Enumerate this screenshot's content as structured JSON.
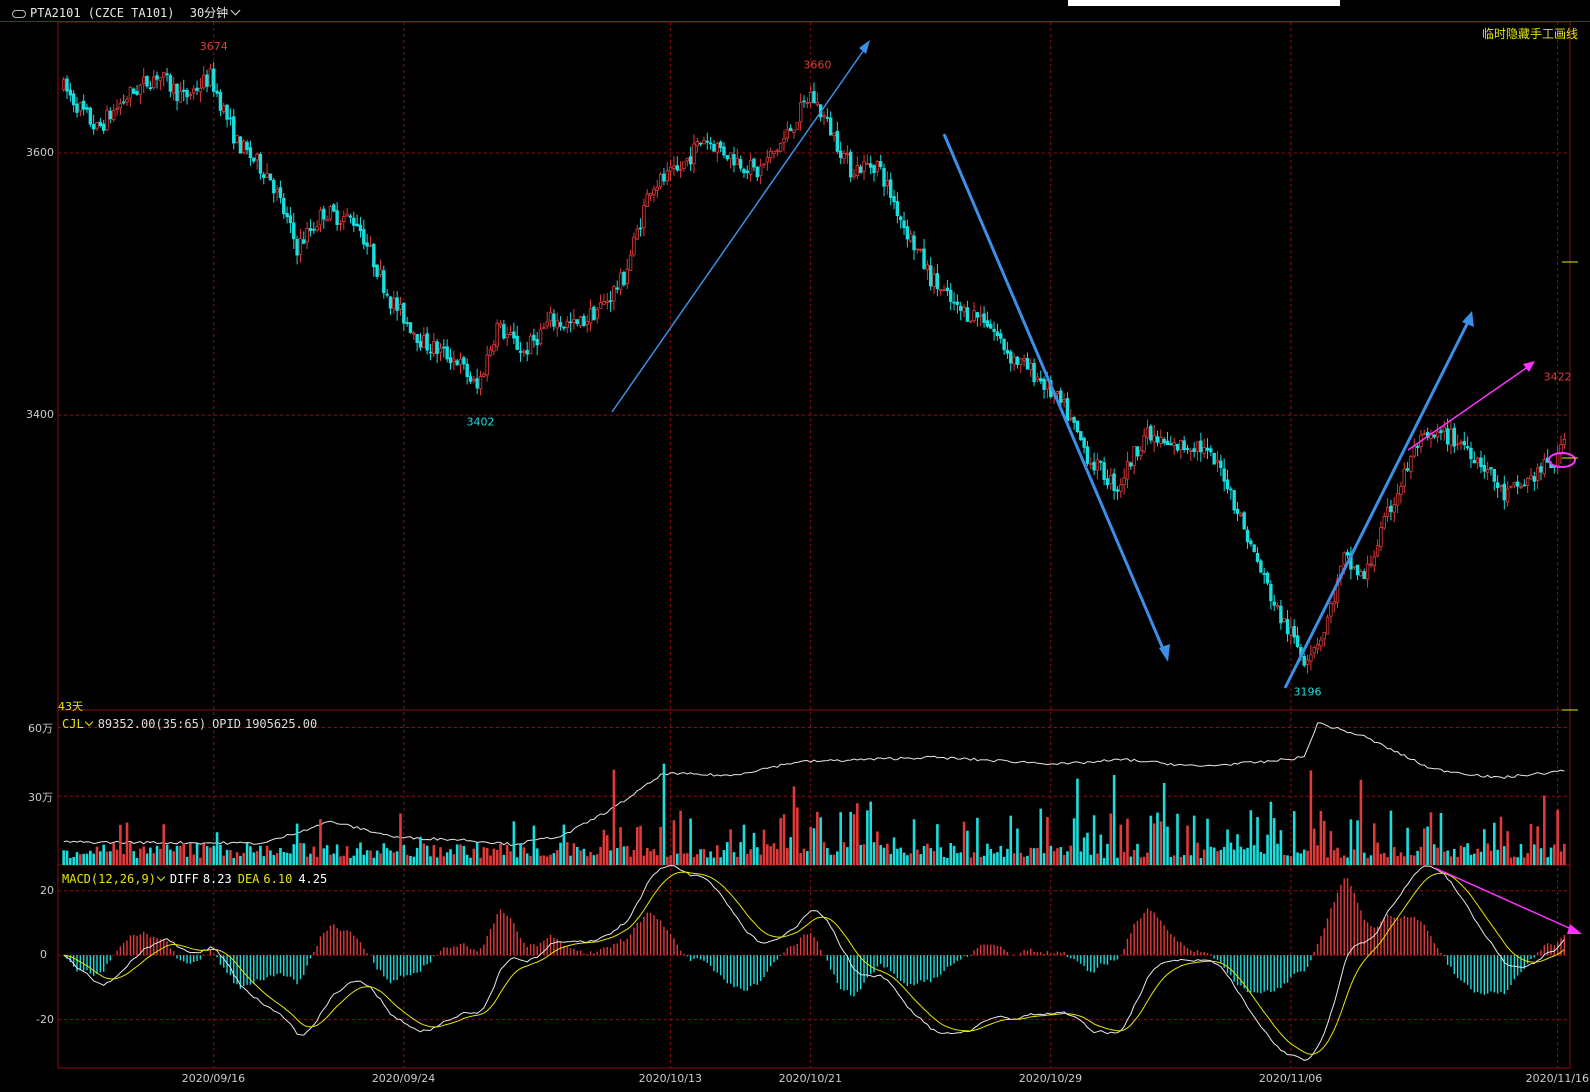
{
  "header": {
    "title": "PTA2101 (CZCE TA101)",
    "period": "30分钟"
  },
  "hide_lines_label": "临时隐藏手工画线",
  "days_label": "43天",
  "colors": {
    "up": "#e03a3a",
    "down": "#19dede",
    "grid": "#8a1010",
    "axis_text": "#cccccc",
    "arrow_blue": "#3b8fe6",
    "arrow_magenta": "#ff33ff",
    "diff_line": "#e8e8e8",
    "dea_line": "#e6e600",
    "ind_label": "#e6e600"
  },
  "volume_panel": {
    "name": "CJL",
    "value_text": "89352.00(35:65)",
    "opid_label": "OPID",
    "opid_value": "1905625.00"
  },
  "macd_panel": {
    "name": "MACD(12,26,9)",
    "diff_label": "DIFF",
    "diff_value": "8.23",
    "dea_label": "DEA",
    "dea_value": "6.10",
    "macd_value": "4.25"
  },
  "chart_data": [
    {
      "type": "candlestick",
      "ylim": [
        3175,
        3700
      ],
      "y_ticks": [
        "3600",
        "3400"
      ],
      "x_ticks": [
        "2020/09/16",
        "2020/09/24",
        "2020/10/13",
        "2020/10/21",
        "2020/10/29",
        "2020/11/06",
        "2020/11/16"
      ],
      "anchors": [
        {
          "i": 0,
          "v": 3650
        },
        {
          "i": 10,
          "v": 3618
        },
        {
          "i": 19,
          "v": 3643
        },
        {
          "i": 28,
          "v": 3660
        },
        {
          "i": 36,
          "v": 3642
        },
        {
          "i": 44,
          "v": 3658
        },
        {
          "i": 52,
          "v": 3608
        },
        {
          "i": 62,
          "v": 3582
        },
        {
          "i": 70,
          "v": 3528
        },
        {
          "i": 78,
          "v": 3555
        },
        {
          "i": 88,
          "v": 3548
        },
        {
          "i": 98,
          "v": 3488
        },
        {
          "i": 108,
          "v": 3455
        },
        {
          "i": 118,
          "v": 3442
        },
        {
          "i": 124,
          "v": 3420
        },
        {
          "i": 130,
          "v": 3468
        },
        {
          "i": 138,
          "v": 3448
        },
        {
          "i": 146,
          "v": 3472
        },
        {
          "i": 154,
          "v": 3468
        },
        {
          "i": 162,
          "v": 3485
        },
        {
          "i": 168,
          "v": 3505
        },
        {
          "i": 176,
          "v": 3575
        },
        {
          "i": 184,
          "v": 3585
        },
        {
          "i": 192,
          "v": 3612
        },
        {
          "i": 200,
          "v": 3598
        },
        {
          "i": 208,
          "v": 3585
        },
        {
          "i": 216,
          "v": 3610
        },
        {
          "i": 224,
          "v": 3645
        },
        {
          "i": 230,
          "v": 3618
        },
        {
          "i": 236,
          "v": 3588
        },
        {
          "i": 244,
          "v": 3592
        },
        {
          "i": 252,
          "v": 3545
        },
        {
          "i": 260,
          "v": 3505
        },
        {
          "i": 268,
          "v": 3480
        },
        {
          "i": 276,
          "v": 3475
        },
        {
          "i": 284,
          "v": 3445
        },
        {
          "i": 292,
          "v": 3430
        },
        {
          "i": 300,
          "v": 3405
        },
        {
          "i": 308,
          "v": 3365
        },
        {
          "i": 316,
          "v": 3345
        },
        {
          "i": 324,
          "v": 3385
        },
        {
          "i": 332,
          "v": 3375
        },
        {
          "i": 340,
          "v": 3378
        },
        {
          "i": 348,
          "v": 3355
        },
        {
          "i": 356,
          "v": 3300
        },
        {
          "i": 364,
          "v": 3250
        },
        {
          "i": 372,
          "v": 3215
        },
        {
          "i": 378,
          "v": 3235
        },
        {
          "i": 384,
          "v": 3290
        },
        {
          "i": 390,
          "v": 3275
        },
        {
          "i": 398,
          "v": 3330
        },
        {
          "i": 406,
          "v": 3378
        },
        {
          "i": 414,
          "v": 3385
        },
        {
          "i": 420,
          "v": 3378
        },
        {
          "i": 426,
          "v": 3362
        },
        {
          "i": 432,
          "v": 3338
        },
        {
          "i": 438,
          "v": 3348
        },
        {
          "i": 444,
          "v": 3360
        },
        {
          "i": 448,
          "v": 3365
        },
        {
          "i": 450,
          "v": 3388
        }
      ],
      "candle_count": 451,
      "price_labels": [
        {
          "text": "3674",
          "i": 45,
          "v": 3674,
          "color": "up",
          "pos": "above"
        },
        {
          "text": "3660",
          "i": 226,
          "v": 3660,
          "color": "up",
          "pos": "above"
        },
        {
          "text": "3402",
          "i": 125,
          "v": 3402,
          "color": "down",
          "pos": "below"
        },
        {
          "text": "3196",
          "i": 373,
          "v": 3196,
          "color": "down",
          "pos": "below"
        },
        {
          "text": "3422",
          "i": 448,
          "v": 3422,
          "color": "up",
          "pos": "above"
        }
      ]
    },
    {
      "type": "bar",
      "name": "CJL",
      "ylim": [
        0,
        650000
      ],
      "y_ticks": [
        "60万",
        "30万"
      ],
      "opid_anchors": [
        {
          "i": 0,
          "v": 100000
        },
        {
          "i": 60,
          "v": 95000
        },
        {
          "i": 80,
          "v": 190000
        },
        {
          "i": 100,
          "v": 120000
        },
        {
          "i": 120,
          "v": 110000
        },
        {
          "i": 135,
          "v": 90000
        },
        {
          "i": 150,
          "v": 130000
        },
        {
          "i": 165,
          "v": 250000
        },
        {
          "i": 180,
          "v": 400000
        },
        {
          "i": 200,
          "v": 390000
        },
        {
          "i": 220,
          "v": 450000
        },
        {
          "i": 240,
          "v": 460000
        },
        {
          "i": 260,
          "v": 470000
        },
        {
          "i": 300,
          "v": 440000
        },
        {
          "i": 318,
          "v": 460000
        },
        {
          "i": 340,
          "v": 430000
        },
        {
          "i": 360,
          "v": 450000
        },
        {
          "i": 372,
          "v": 470000
        },
        {
          "i": 376,
          "v": 620000
        },
        {
          "i": 390,
          "v": 560000
        },
        {
          "i": 410,
          "v": 420000
        },
        {
          "i": 430,
          "v": 380000
        },
        {
          "i": 450,
          "v": 410000
        }
      ]
    },
    {
      "type": "bar",
      "name": "MACD(12,26,9)",
      "ylim": [
        -35,
        28
      ],
      "y_ticks": [
        "20",
        "0",
        "-20"
      ]
    }
  ]
}
